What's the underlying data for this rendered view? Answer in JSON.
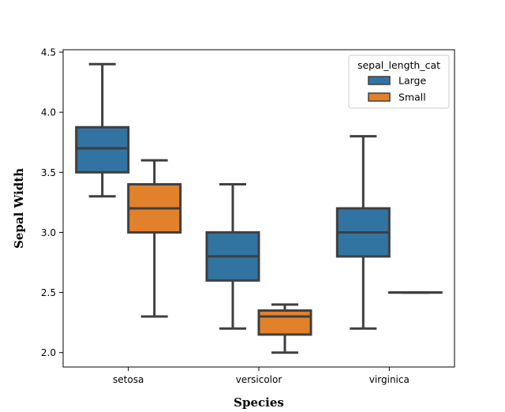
{
  "chart_data": {
    "type": "box",
    "xlabel": "Species",
    "ylabel": "Sepal Width",
    "ylim": [
      1.88,
      4.52
    ],
    "yticks": [
      2.0,
      2.5,
      3.0,
      3.5,
      4.0,
      4.5
    ],
    "ytick_labels": [
      "2.0",
      "2.5",
      "3.0",
      "3.5",
      "4.0",
      "4.5"
    ],
    "categories": [
      "setosa",
      "versicolor",
      "virginica"
    ],
    "legend": {
      "title": "sepal_length_cat",
      "position": "top-right",
      "entries": [
        "Large",
        "Small"
      ]
    },
    "series": [
      {
        "name": "Large",
        "color": "#3274a1",
        "boxes": [
          {
            "category": "setosa",
            "whisker_low": 3.3,
            "q1": 3.5,
            "median": 3.7,
            "q3": 3.875,
            "whisker_high": 4.4
          },
          {
            "category": "versicolor",
            "whisker_low": 2.2,
            "q1": 2.6,
            "median": 2.8,
            "q3": 3.0,
            "whisker_high": 3.4
          },
          {
            "category": "virginica",
            "whisker_low": 2.2,
            "q1": 2.8,
            "median": 3.0,
            "q3": 3.2,
            "whisker_high": 3.8
          }
        ]
      },
      {
        "name": "Small",
        "color": "#e1812c",
        "boxes": [
          {
            "category": "setosa",
            "whisker_low": 2.3,
            "q1": 3.0,
            "median": 3.2,
            "q3": 3.4,
            "whisker_high": 3.6
          },
          {
            "category": "versicolor",
            "whisker_low": 2.0,
            "q1": 2.15,
            "median": 2.3,
            "q3": 2.35,
            "whisker_high": 2.4
          },
          {
            "category": "virginica",
            "whisker_low": 2.5,
            "q1": 2.5,
            "median": 2.5,
            "q3": 2.5,
            "whisker_high": 2.5
          }
        ]
      }
    ],
    "edge_color": "#3f3f3f",
    "grid": false
  }
}
